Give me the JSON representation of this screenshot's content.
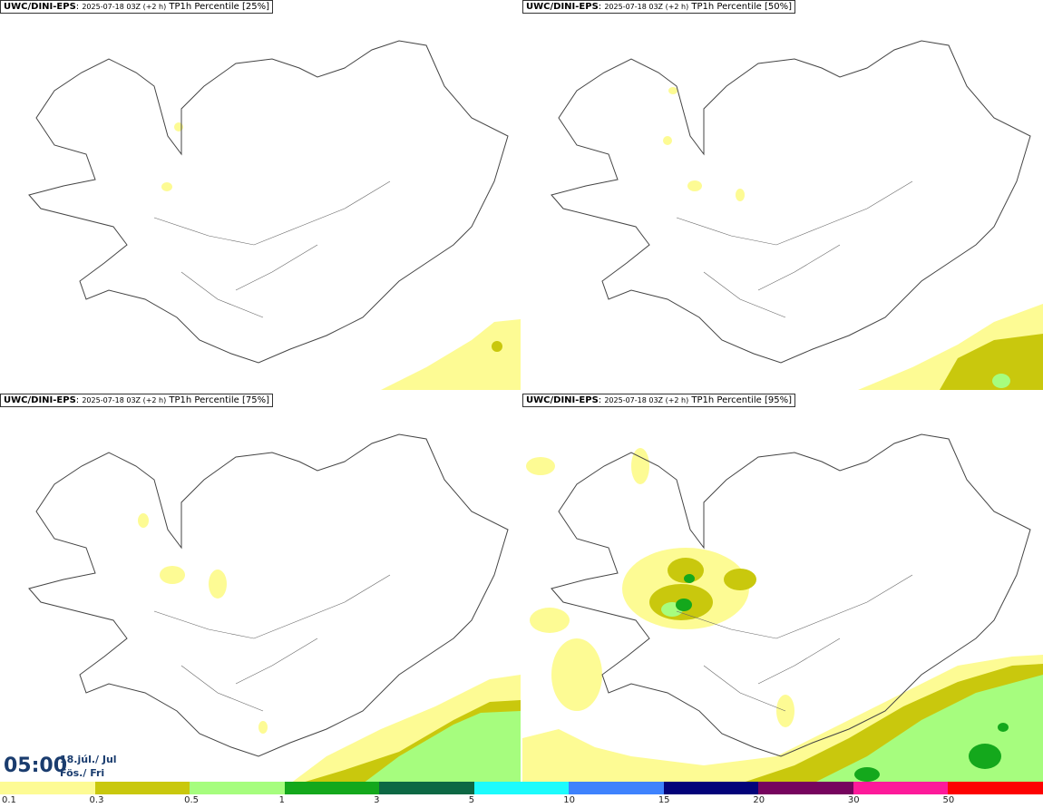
{
  "panels": [
    {
      "name": "UWC/DINI-EPS",
      "subtitle": "2025-07-18 03Z (+2 h)",
      "title": "TP1h Percentile [25%]"
    },
    {
      "name": "UWC/DINI-EPS",
      "subtitle": "2025-07-18 03Z (+2 h)",
      "title": "TP1h Percentile [50%]"
    },
    {
      "name": "UWC/DINI-EPS",
      "subtitle": "2025-07-18 03Z (+2 h)",
      "title": "TP1h Percentile [75%]"
    },
    {
      "name": "UWC/DINI-EPS",
      "subtitle": "2025-07-18 03Z (+2 h)",
      "title": "TP1h Percentile [95%]"
    }
  ],
  "clock": {
    "time": "05:00",
    "date": "18.júl./ Jul",
    "day": "Fös./ Fri"
  },
  "legend": {
    "labels": [
      "0.1",
      "0.3",
      "0.5",
      "1",
      "3",
      "5",
      "10",
      "15",
      "20",
      "30",
      "50"
    ],
    "colors": [
      "#fdfb94",
      "#c9c80d",
      "#a6fd7e",
      "#14a81c",
      "#0d6844",
      "#1dfbfc",
      "#3e82fd",
      "#03037a",
      "#76045e",
      "#fd1a9a",
      "#fd0202"
    ]
  }
}
